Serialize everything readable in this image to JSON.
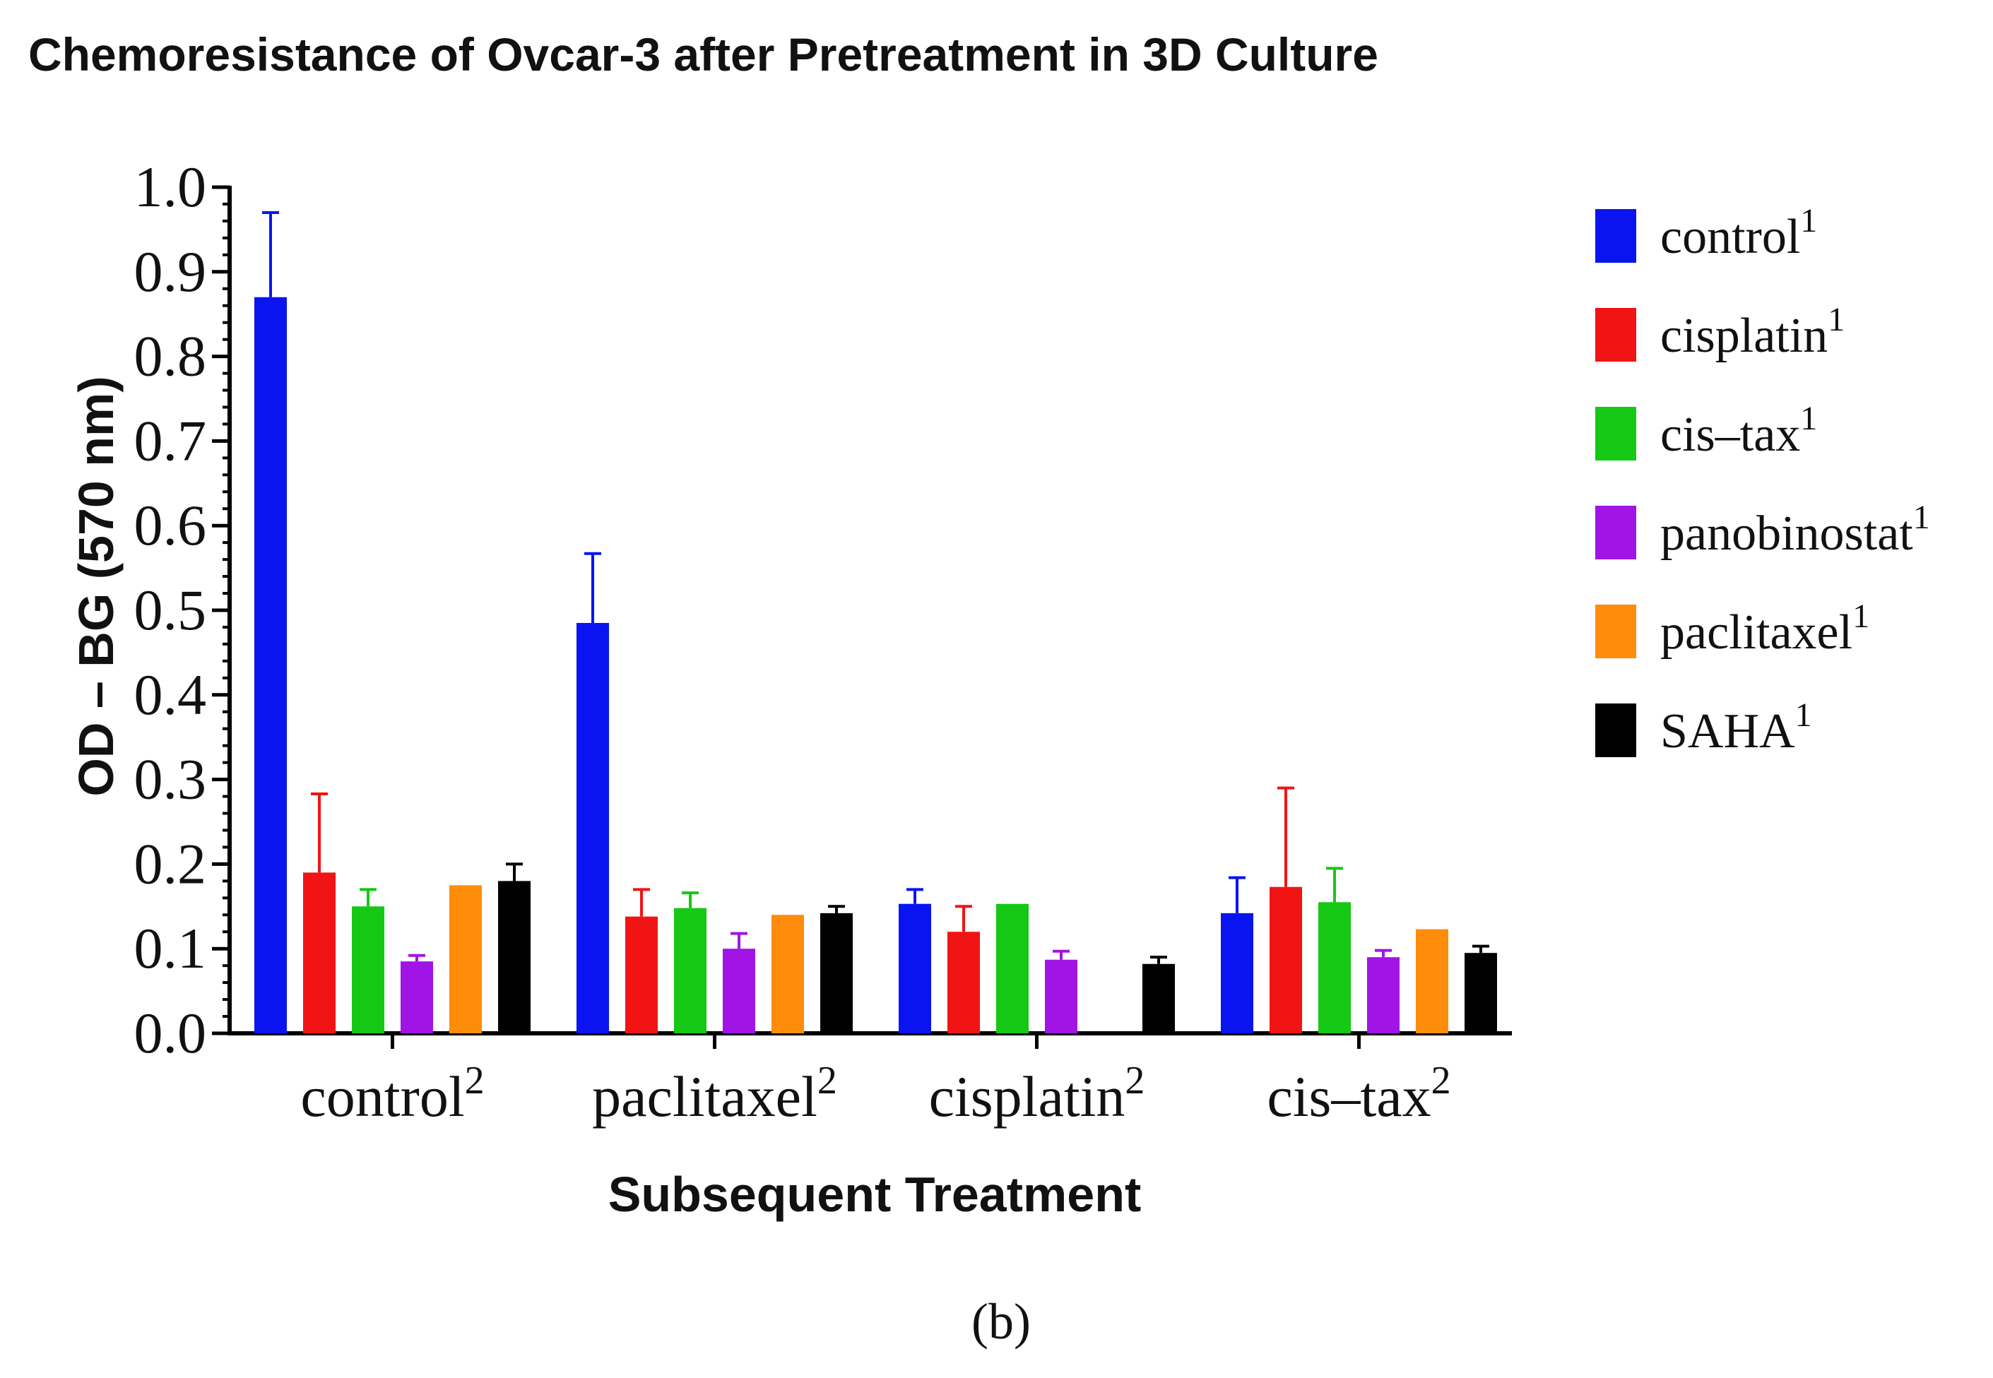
{
  "figure": {
    "panel_label": "(b)"
  },
  "chart_data": {
    "type": "bar",
    "title": "Chemoresistance of Ovcar-3 after Pretreatment in 3D Culture",
    "xlabel": "Subsequent Treatment",
    "ylabel": "OD – BG (570 nm)",
    "ylim": [
      0.0,
      1.0
    ],
    "yticks": [
      "0.0",
      "0.1",
      "0.2",
      "0.3",
      "0.4",
      "0.5",
      "0.6",
      "0.7",
      "0.8",
      "0.9",
      "1.0"
    ],
    "categories": [
      "control",
      "paclitaxel",
      "cisplatin",
      "cis–tax"
    ],
    "category_superscript": "2",
    "legend_superscript": "1",
    "legend_position": "right",
    "grid": false,
    "series": [
      {
        "name": "control",
        "color": "#0a14f0",
        "values": [
          0.87,
          0.485,
          0.153,
          0.142
        ],
        "errors": [
          0.1,
          0.082,
          0.017,
          0.042
        ]
      },
      {
        "name": "cisplatin",
        "color": "#f01414",
        "values": [
          0.19,
          0.138,
          0.12,
          0.173
        ],
        "errors": [
          0.093,
          0.032,
          0.03,
          0.117
        ]
      },
      {
        "name": "cis–tax",
        "color": "#14c814",
        "values": [
          0.15,
          0.148,
          0.153,
          0.155
        ],
        "errors": [
          0.02,
          0.018,
          0.0,
          0.04
        ]
      },
      {
        "name": "panobinostat",
        "color": "#a014e6",
        "values": [
          0.085,
          0.1,
          0.087,
          0.09
        ],
        "errors": [
          0.007,
          0.018,
          0.01,
          0.008
        ]
      },
      {
        "name": "paclitaxel",
        "color": "#ff8c0a",
        "values": [
          0.175,
          0.14,
          0.0,
          0.123
        ],
        "errors": [
          0.0,
          0.0,
          0.0,
          0.0
        ]
      },
      {
        "name": "SAHA",
        "color": "#000000",
        "values": [
          0.18,
          0.142,
          0.082,
          0.095
        ],
        "errors": [
          0.02,
          0.008,
          0.008,
          0.008
        ]
      }
    ]
  }
}
